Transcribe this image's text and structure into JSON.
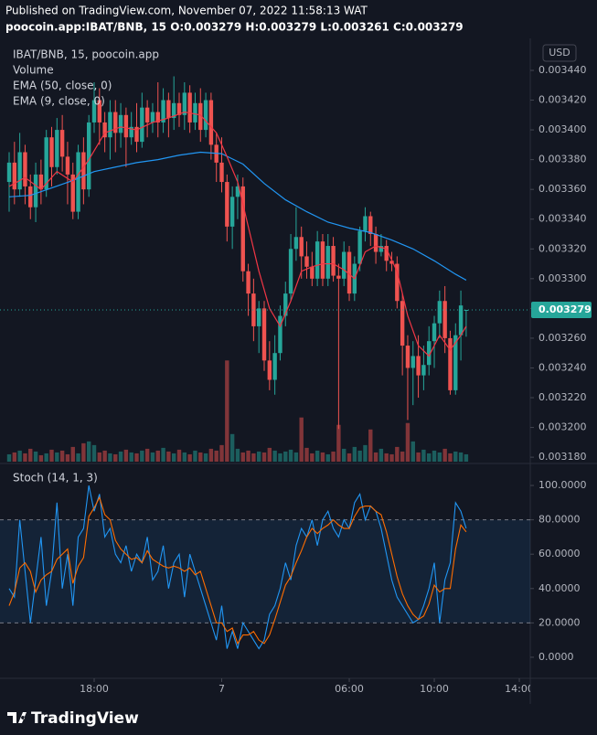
{
  "header": {
    "published": "Published on TradingView.com, November 07, 2022 11:58:13 WAT",
    "symbol_line": "poocoin.app:IBAT/BNB, 15  O:0.003279 H:0.003279 L:0.003261 C:0.003279"
  },
  "chart_data": [
    {
      "type": "candlestick",
      "title": "IBAT/BNB, 15, poocoin.app",
      "currency": "USD",
      "open": [
        0.003365,
        0.003378,
        0.00336,
        0.003385,
        0.003362,
        0.003348,
        0.00337,
        0.00336,
        0.003395,
        0.003375,
        0.0034,
        0.003382,
        0.00337,
        0.003345,
        0.003385,
        0.00336,
        0.003405,
        0.00342,
        0.003405,
        0.003395,
        0.003412,
        0.003398,
        0.00341,
        0.003395,
        0.003402,
        0.003392,
        0.003415,
        0.003405,
        0.003412,
        0.003405,
        0.00342,
        0.003408,
        0.003418,
        0.00341,
        0.003425,
        0.003405,
        0.003418,
        0.0034,
        0.00342,
        0.00339,
        0.003378,
        0.003365,
        0.003335,
        0.003355,
        0.003362,
        0.003305,
        0.00329,
        0.003268,
        0.00328,
        0.003245,
        0.003232,
        0.00325,
        0.003275,
        0.00329,
        0.00332,
        0.003328,
        0.003315,
        0.003308,
        0.0033,
        0.003325,
        0.0033,
        0.003322,
        0.003302,
        0.0033,
        0.003318,
        0.00329,
        0.00331,
        0.003332,
        0.003342,
        0.00333,
        0.003318,
        0.003322,
        0.003312,
        0.00331,
        0.003285,
        0.003255,
        0.00324,
        0.003248,
        0.003235,
        0.003242,
        0.003258,
        0.00327,
        0.003285,
        0.00326,
        0.003225,
        0.003262,
        0.003279
      ],
      "high": [
        0.003385,
        0.003392,
        0.003398,
        0.00339,
        0.00337,
        0.003378,
        0.00338,
        0.0034,
        0.003402,
        0.003408,
        0.00341,
        0.003392,
        0.003378,
        0.00339,
        0.003395,
        0.00341,
        0.003432,
        0.003428,
        0.003412,
        0.00342,
        0.00342,
        0.003418,
        0.003415,
        0.003412,
        0.003418,
        0.003425,
        0.00342,
        0.003418,
        0.003432,
        0.003428,
        0.003425,
        0.003436,
        0.003425,
        0.003432,
        0.00343,
        0.003425,
        0.003428,
        0.003425,
        0.003425,
        0.003398,
        0.003395,
        0.00337,
        0.003362,
        0.00337,
        0.003368,
        0.00331,
        0.0033,
        0.003285,
        0.003285,
        0.003258,
        0.003262,
        0.003282,
        0.003298,
        0.00333,
        0.003348,
        0.003335,
        0.003325,
        0.003318,
        0.003332,
        0.00333,
        0.00333,
        0.003328,
        0.00331,
        0.003325,
        0.003322,
        0.003315,
        0.003335,
        0.003348,
        0.003345,
        0.003335,
        0.00333,
        0.003326,
        0.003318,
        0.003315,
        0.00329,
        0.003262,
        0.003258,
        0.003262,
        0.003255,
        0.003268,
        0.003275,
        0.003292,
        0.003295,
        0.003265,
        0.00327,
        0.003292,
        0.003279
      ],
      "low": [
        0.003345,
        0.00335,
        0.003355,
        0.00335,
        0.00334,
        0.003338,
        0.00335,
        0.003355,
        0.003362,
        0.00337,
        0.003372,
        0.00335,
        0.00334,
        0.00334,
        0.00335,
        0.003355,
        0.003398,
        0.00339,
        0.003385,
        0.00338,
        0.003385,
        0.003388,
        0.003375,
        0.00339,
        0.003385,
        0.003388,
        0.003395,
        0.003398,
        0.003395,
        0.003398,
        0.003395,
        0.0034,
        0.003402,
        0.0034,
        0.003398,
        0.0034,
        0.003392,
        0.003395,
        0.00338,
        0.003365,
        0.003358,
        0.003325,
        0.00332,
        0.00334,
        0.003298,
        0.003275,
        0.003258,
        0.00325,
        0.003238,
        0.003225,
        0.003222,
        0.003245,
        0.003268,
        0.003285,
        0.003312,
        0.0033,
        0.0033,
        0.003295,
        0.003295,
        0.003295,
        0.003295,
        0.003298,
        0.003199,
        0.003295,
        0.003285,
        0.003285,
        0.003305,
        0.003325,
        0.003322,
        0.00331,
        0.003315,
        0.003305,
        0.003305,
        0.00328,
        0.003235,
        0.003205,
        0.003215,
        0.00322,
        0.003225,
        0.003235,
        0.00324,
        0.00326,
        0.00325,
        0.003222,
        0.003222,
        0.003245,
        0.003261
      ],
      "close": [
        0.003378,
        0.00336,
        0.003385,
        0.003362,
        0.003348,
        0.00337,
        0.00336,
        0.003395,
        0.003375,
        0.0034,
        0.003382,
        0.00337,
        0.003345,
        0.003385,
        0.00336,
        0.003405,
        0.00342,
        0.003405,
        0.003395,
        0.003412,
        0.003398,
        0.00341,
        0.003395,
        0.003402,
        0.003392,
        0.003415,
        0.003405,
        0.003412,
        0.003405,
        0.00342,
        0.003408,
        0.003418,
        0.00341,
        0.003425,
        0.003405,
        0.003418,
        0.0034,
        0.00342,
        0.00339,
        0.003378,
        0.003365,
        0.003335,
        0.003355,
        0.003362,
        0.003305,
        0.00329,
        0.003268,
        0.00328,
        0.003245,
        0.003232,
        0.00325,
        0.003275,
        0.00329,
        0.00332,
        0.003328,
        0.003315,
        0.003308,
        0.0033,
        0.003325,
        0.0033,
        0.003322,
        0.003302,
        0.0033,
        0.003318,
        0.00329,
        0.00331,
        0.003332,
        0.003342,
        0.00333,
        0.003318,
        0.003322,
        0.003312,
        0.00331,
        0.003285,
        0.003255,
        0.00324,
        0.003248,
        0.003235,
        0.003242,
        0.003258,
        0.00327,
        0.003285,
        0.00326,
        0.003225,
        0.003262,
        0.003282,
        0.003279
      ],
      "up_color": "#26a69a",
      "down_color": "#ef5350",
      "volume": {
        "name": "Volume",
        "ylim": [
          0,
          460
        ],
        "values": [
          8,
          10,
          12,
          9,
          14,
          11,
          7,
          9,
          13,
          10,
          12,
          8,
          16,
          9,
          20,
          22,
          18,
          10,
          12,
          9,
          8,
          11,
          13,
          10,
          9,
          12,
          14,
          10,
          12,
          15,
          11,
          9,
          13,
          10,
          8,
          12,
          10,
          9,
          14,
          12,
          18,
          110,
          30,
          14,
          10,
          12,
          9,
          11,
          10,
          15,
          12,
          9,
          11,
          13,
          10,
          48,
          15,
          9,
          12,
          10,
          8,
          11,
          40,
          14,
          9,
          16,
          12,
          18,
          35,
          10,
          14,
          9,
          8,
          16,
          11,
          42,
          22,
          10,
          13,
          9,
          12,
          10,
          14,
          9,
          11,
          10,
          8
        ]
      },
      "series": [
        {
          "name": "EMA (50, close, 0)",
          "color": "#2196f3",
          "x": [
            0,
            4,
            8,
            12,
            16,
            20,
            24,
            28,
            32,
            36,
            40,
            44,
            48,
            52,
            56,
            60,
            64,
            68,
            72,
            76,
            80,
            84,
            86
          ],
          "values": [
            0.003355,
            0.003356,
            0.003361,
            0.003366,
            0.003372,
            0.003375,
            0.003378,
            0.00338,
            0.003383,
            0.003385,
            0.003384,
            0.003377,
            0.003364,
            0.003353,
            0.003345,
            0.003338,
            0.003334,
            0.003331,
            0.003326,
            0.00332,
            0.003312,
            0.003303,
            0.003299
          ]
        },
        {
          "name": "EMA (9, close, 0)",
          "color": "#f23645",
          "x": [
            0,
            3,
            6,
            9,
            12,
            15,
            18,
            21,
            24,
            27,
            30,
            33,
            36,
            39,
            41,
            43,
            45,
            47,
            49,
            51,
            53,
            55,
            57,
            59,
            61,
            63,
            65,
            67,
            69,
            71,
            73,
            75,
            77,
            79,
            81,
            83,
            85,
            86
          ],
          "values": [
            0.003362,
            0.003368,
            0.00336,
            0.003372,
            0.003365,
            0.00338,
            0.003398,
            0.003402,
            0.0034,
            0.003405,
            0.003408,
            0.003412,
            0.00341,
            0.003398,
            0.003382,
            0.003365,
            0.003335,
            0.003305,
            0.00328,
            0.003268,
            0.003285,
            0.003305,
            0.003308,
            0.00331,
            0.00331,
            0.003306,
            0.0033,
            0.003318,
            0.003322,
            0.00332,
            0.003305,
            0.003275,
            0.003255,
            0.003248,
            0.003262,
            0.003252,
            0.003262,
            0.003268
          ]
        }
      ],
      "xlim": [
        -1.72,
        98.06
      ],
      "xticks": [
        {
          "value": 16,
          "label": "18:00"
        },
        {
          "value": 40,
          "label": "7"
        },
        {
          "value": 64,
          "label": "06:00"
        },
        {
          "value": 80,
          "label": "10:00"
        },
        {
          "value": 96,
          "label": "14:00"
        }
      ],
      "ylim": [
        0.003177,
        0.0034615
      ],
      "yticks": [
        {
          "value": 0.00344,
          "label": "0.003440"
        },
        {
          "value": 0.00342,
          "label": "0.003420"
        },
        {
          "value": 0.0034,
          "label": "0.003400"
        },
        {
          "value": 0.00338,
          "label": "0.003380"
        },
        {
          "value": 0.00336,
          "label": "0.003360"
        },
        {
          "value": 0.00334,
          "label": "0.003340"
        },
        {
          "value": 0.00332,
          "label": "0.003320"
        },
        {
          "value": 0.0033,
          "label": "0.003300"
        },
        {
          "value": 0.00328,
          "label": "0.003280"
        },
        {
          "value": 0.00326,
          "label": "0.003260"
        },
        {
          "value": 0.00324,
          "label": "0.003240"
        },
        {
          "value": 0.00322,
          "label": "0.003220"
        },
        {
          "value": 0.0032,
          "label": "0.003200"
        },
        {
          "value": 0.00318,
          "label": "0.003180"
        }
      ],
      "grid": false
    },
    {
      "type": "line",
      "title": "Stoch (14, 1, 3)",
      "series": [
        {
          "color": "#2196f3",
          "values": [
            40,
            35,
            80,
            50,
            20,
            45,
            70,
            30,
            50,
            90,
            40,
            60,
            30,
            70,
            75,
            100,
            85,
            95,
            70,
            75,
            60,
            55,
            65,
            50,
            60,
            55,
            70,
            45,
            50,
            65,
            40,
            55,
            60,
            35,
            60,
            50,
            40,
            30,
            20,
            10,
            30,
            5,
            15,
            5,
            20,
            15,
            10,
            5,
            10,
            25,
            30,
            40,
            55,
            45,
            65,
            75,
            70,
            80,
            65,
            80,
            85,
            75,
            70,
            80,
            75,
            90,
            95,
            80,
            88,
            85,
            75,
            60,
            45,
            35,
            30,
            25,
            20,
            22,
            30,
            40,
            55,
            20,
            45,
            55,
            90,
            85,
            75
          ]
        },
        {
          "color": "#ff6d00",
          "values": [
            30,
            38,
            52,
            55,
            50,
            38,
            45,
            48,
            50,
            57,
            60,
            63,
            43,
            53,
            58,
            82,
            87,
            93,
            83,
            80,
            68,
            63,
            60,
            57,
            58,
            55,
            62,
            57,
            55,
            53,
            52,
            53,
            52,
            50,
            52,
            48,
            50,
            40,
            30,
            20,
            20,
            15,
            17,
            8,
            13,
            13,
            15,
            10,
            8,
            13,
            22,
            32,
            42,
            47,
            55,
            62,
            70,
            75,
            72,
            75,
            77,
            80,
            77,
            75,
            75,
            82,
            87,
            88,
            88,
            85,
            83,
            73,
            60,
            47,
            37,
            30,
            25,
            22,
            24,
            31,
            42,
            38,
            40,
            40,
            63,
            77,
            73
          ]
        }
      ],
      "bands": [
        80,
        20
      ],
      "band_color": "#2196f3",
      "xlim": [
        -1.72,
        98.06
      ],
      "ylim": [
        -11.2,
        111.2
      ],
      "yticks": [
        {
          "value": 100,
          "label": "100.0000"
        },
        {
          "value": 80,
          "label": "80.0000"
        },
        {
          "value": 60,
          "label": "60.0000"
        },
        {
          "value": 40,
          "label": "40.0000"
        },
        {
          "value": 20,
          "label": "20.0000"
        },
        {
          "value": 0,
          "label": "0.0000"
        }
      ],
      "grid": false
    }
  ],
  "footer": {
    "logo_text": "TradingView"
  }
}
